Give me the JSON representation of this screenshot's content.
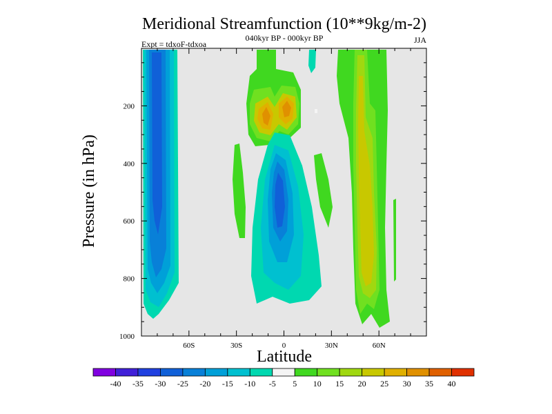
{
  "chart_data": {
    "type": "heatmap",
    "title": "Meridional Streamfunction (10**9kg/m-2)",
    "subtitle": "040kyr BP - 000kyr BP",
    "left_label": "Expt = tdxoF-tdxoa",
    "right_label": "JJA",
    "xlabel": "Latitude",
    "ylabel": "Pressure (in hPa)",
    "xlim": [
      -90,
      90
    ],
    "ylim": [
      1000,
      0
    ],
    "x_ticks": [
      {
        "value": -60,
        "label": "60S"
      },
      {
        "value": -30,
        "label": "30S"
      },
      {
        "value": 0,
        "label": "0"
      },
      {
        "value": 30,
        "label": "30N"
      },
      {
        "value": 60,
        "label": "60N"
      }
    ],
    "y_ticks": [
      {
        "value": 200,
        "label": "200"
      },
      {
        "value": 400,
        "label": "400"
      },
      {
        "value": 600,
        "label": "600"
      },
      {
        "value": 800,
        "label": "800"
      },
      {
        "value": 1000,
        "label": "1000"
      }
    ],
    "missing_color": "#e6e6e6",
    "colorbar": {
      "labels": [
        "-40",
        "-35",
        "-30",
        "-25",
        "-20",
        "-15",
        "-10",
        "-5",
        "5",
        "10",
        "15",
        "20",
        "25",
        "30",
        "35",
        "40"
      ],
      "colors": [
        "#8000e0",
        "#4020d8",
        "#2040e0",
        "#1060d8",
        "#0880d8",
        "#00a0d8",
        "#00c0d0",
        "#00d8b0",
        "#f4f4f4",
        "#40d820",
        "#70e020",
        "#a0d810",
        "#c8c800",
        "#e0b000",
        "#e09000",
        "#e06000",
        "#e03000"
      ]
    },
    "levels": [
      -40,
      -35,
      -30,
      -25,
      -20,
      -15,
      -10,
      -5,
      5,
      10,
      15,
      20,
      25,
      30,
      35,
      40
    ],
    "features": [
      {
        "lat": -78,
        "p": 500,
        "value": -32
      },
      {
        "lat": 0,
        "p": 520,
        "value": -36
      },
      {
        "lat": -12,
        "p": 220,
        "value": 30
      },
      {
        "lat": 2,
        "p": 180,
        "value": 31
      },
      {
        "lat": 55,
        "p": 700,
        "value": 22
      }
    ]
  }
}
